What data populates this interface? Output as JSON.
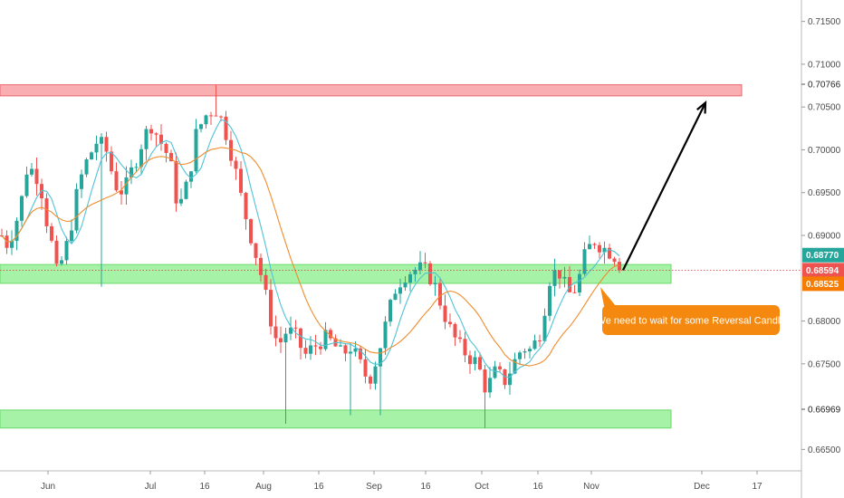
{
  "chart_data": {
    "type": "candlestick",
    "y_range": [
      0.6625,
      0.7175
    ],
    "y_ticks": [
      "0.71500",
      "0.71000",
      "0.70500",
      "0.70000",
      "0.69500",
      "0.69000",
      "0.68000",
      "0.67500",
      "0.66500"
    ],
    "x_ticks": [
      "Jun",
      "Jul",
      "16",
      "Aug",
      "16",
      "Sep",
      "16",
      "Oct",
      "16",
      "Nov",
      "Dec",
      "17"
    ],
    "price_tags": [
      {
        "label": "0.70766",
        "value": 0.70766,
        "style": "plain"
      },
      {
        "label": "0.68770",
        "value": 0.6877,
        "style": "teal"
      },
      {
        "label": "0.68594",
        "value": 0.68594,
        "style": "red"
      },
      {
        "label": "0.68525",
        "value": 0.68525,
        "style": "orange"
      },
      {
        "label": "0.66969",
        "value": 0.66969,
        "style": "plain"
      }
    ],
    "zones": [
      {
        "kind": "resistance",
        "from": 0.7063,
        "to": 0.7076
      },
      {
        "kind": "support",
        "from": 0.6844,
        "to": 0.6866
      },
      {
        "kind": "support",
        "from": 0.6675,
        "to": 0.6696
      }
    ],
    "current_price_line": 0.68594,
    "colors": {
      "up": "#26a69a",
      "down": "#ef5350",
      "ma_fast": "#4fc3d7",
      "ma_slow": "#f08c2e",
      "resistance": "#f8a0a4",
      "support": "#96f096"
    },
    "annotation": {
      "text": "We need to wait for some Reversal Candle",
      "color": "#f5890f"
    },
    "arrow": {
      "from_value": 0.68594,
      "to_value": 0.7055
    }
  }
}
